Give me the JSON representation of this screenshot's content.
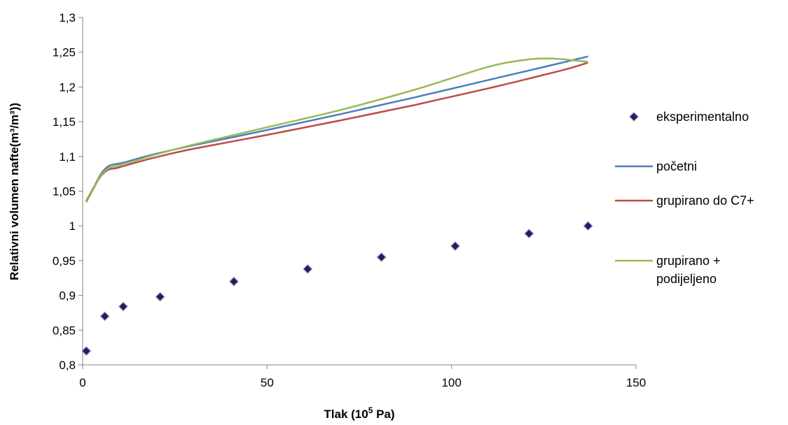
{
  "chart_data": {
    "type": "line",
    "title": "",
    "xlabel": "Tlak (10",
    "xlabel_sup": "5",
    "xlabel_suffix": " Pa)",
    "ylabel": "Relativni volumen nafte(m³/m³))",
    "xlim": [
      0,
      150
    ],
    "ylim": [
      0.8,
      1.3
    ],
    "x_ticks": [
      0,
      50,
      100,
      150
    ],
    "x_tick_labels": [
      "0",
      "50",
      "100",
      "150"
    ],
    "y_ticks": [
      0.8,
      0.85,
      0.9,
      0.95,
      1.0,
      1.05,
      1.1,
      1.15,
      1.2,
      1.25,
      1.3
    ],
    "y_tick_labels": [
      "0,8",
      "0,85",
      "0,9",
      "0,95",
      "1",
      "1,05",
      "1,1",
      "1,15",
      "1,2",
      "1,25",
      "1,3"
    ],
    "grid": false,
    "legend_position": "right",
    "series": [
      {
        "name": "eksperimentalno",
        "kind": "scatter",
        "marker": "diamond",
        "color": "#1f1f5c",
        "x": [
          1,
          6,
          11,
          21,
          41,
          61,
          81,
          101,
          121,
          137
        ],
        "y": [
          0.82,
          0.87,
          0.884,
          0.898,
          0.92,
          0.938,
          0.955,
          0.971,
          0.989,
          1.0
        ]
      },
      {
        "name": "početni",
        "kind": "line",
        "color": "#4a7ebb",
        "x": [
          1,
          3,
          5,
          7,
          9,
          11,
          15,
          20,
          30,
          50,
          70,
          90,
          110,
          130,
          137
        ],
        "y": [
          1.035,
          1.055,
          1.075,
          1.086,
          1.089,
          1.091,
          1.097,
          1.104,
          1.116,
          1.138,
          1.161,
          1.185,
          1.21,
          1.235,
          1.244
        ]
      },
      {
        "name": "grupirano do C7+",
        "kind": "line",
        "color": "#be4b48",
        "x": [
          1,
          3,
          5,
          7,
          9,
          11,
          15,
          20,
          30,
          50,
          70,
          90,
          110,
          130,
          137
        ],
        "y": [
          1.036,
          1.055,
          1.072,
          1.081,
          1.083,
          1.086,
          1.092,
          1.099,
          1.111,
          1.131,
          1.152,
          1.174,
          1.198,
          1.224,
          1.235
        ]
      },
      {
        "name": "grupirano + podijeljeno",
        "label_lines": [
          "grupirano +",
          "podijeljeno"
        ],
        "kind": "line",
        "color": "#98b954",
        "x": [
          1,
          3,
          5,
          7,
          9,
          11,
          15,
          20,
          30,
          50,
          70,
          90,
          110,
          120,
          125,
          130,
          137
        ],
        "y": [
          1.034,
          1.054,
          1.073,
          1.083,
          1.086,
          1.089,
          1.095,
          1.103,
          1.117,
          1.142,
          1.167,
          1.196,
          1.229,
          1.239,
          1.241,
          1.24,
          1.236
        ]
      }
    ]
  }
}
